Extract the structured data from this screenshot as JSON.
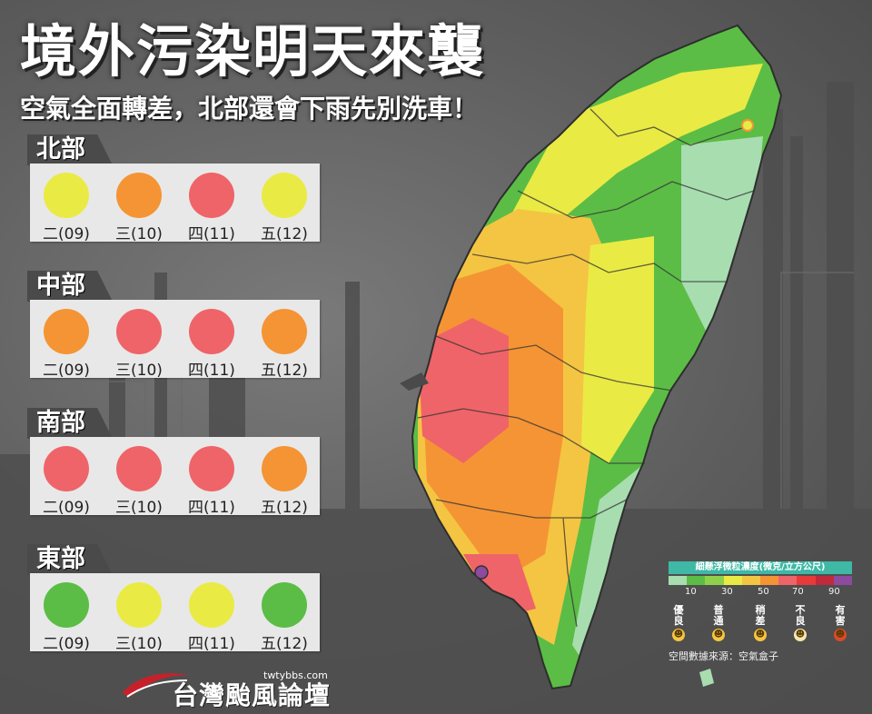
{
  "title": "境外污染明天來襲",
  "subtitle": "空氣全面轉差，北部還會下雨先別洗車！",
  "regions": [
    {
      "name": "北部",
      "days": [
        {
          "label": "二(09)",
          "color": "#eaea45"
        },
        {
          "label": "三(10)",
          "color": "#f59434"
        },
        {
          "label": "四(11)",
          "color": "#ef6468"
        },
        {
          "label": "五(12)",
          "color": "#eaea45"
        }
      ]
    },
    {
      "name": "中部",
      "days": [
        {
          "label": "二(09)",
          "color": "#f59434"
        },
        {
          "label": "三(10)",
          "color": "#ef6468"
        },
        {
          "label": "四(11)",
          "color": "#ef6468"
        },
        {
          "label": "五(12)",
          "color": "#f59434"
        }
      ]
    },
    {
      "name": "南部",
      "days": [
        {
          "label": "二(09)",
          "color": "#ef6468"
        },
        {
          "label": "三(10)",
          "color": "#ef6468"
        },
        {
          "label": "四(11)",
          "color": "#ef6468"
        },
        {
          "label": "五(12)",
          "color": "#f59434"
        }
      ]
    },
    {
      "name": "東部",
      "days": [
        {
          "label": "二(09)",
          "color": "#5bbd45"
        },
        {
          "label": "三(10)",
          "color": "#eaea45"
        },
        {
          "label": "四(11)",
          "color": "#eaea45"
        },
        {
          "label": "五(12)",
          "color": "#5bbd45"
        }
      ]
    }
  ],
  "legend": {
    "title": "細懸浮微粒濃度(微克/立方公尺)",
    "colors": [
      "#a8ddb0",
      "#5bbd45",
      "#8fd04a",
      "#eaea45",
      "#f4c542",
      "#f59434",
      "#ef6468",
      "#e83a3a",
      "#c02a3a",
      "#8e4a9e"
    ],
    "ticks": [
      "10",
      "30",
      "50",
      "70",
      "90"
    ],
    "categories": [
      {
        "label": "優\n良",
        "face": "☻",
        "face_color": "#f4c542"
      },
      {
        "label": "普\n通",
        "face": "☻",
        "face_color": "#f4c542"
      },
      {
        "label": "稍\n差",
        "face": "☻",
        "face_color": "#f4c542"
      },
      {
        "label": "不\n良",
        "face": "☻",
        "face_color": "#f7e7b0"
      },
      {
        "label": "有\n害",
        "face": "☻",
        "face_color": "#d94a2a"
      }
    ],
    "source": "空間數據來源：空氣盒子"
  },
  "brand": {
    "site": "twtybbs.com",
    "name": "台灣颱風論壇"
  }
}
